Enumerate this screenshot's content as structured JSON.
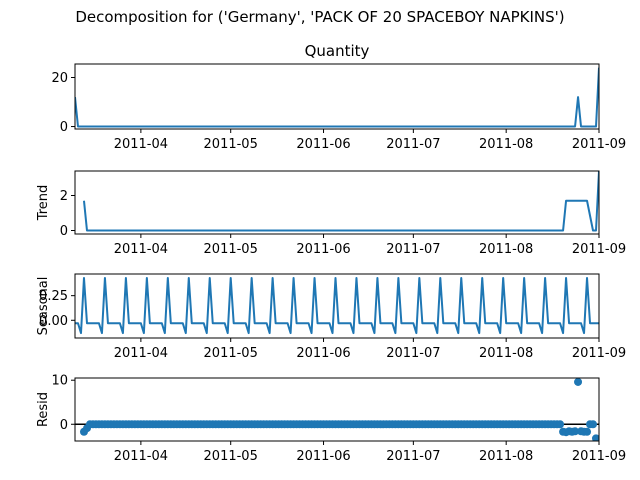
{
  "figure": {
    "suptitle": "Decomposition for ('Germany', 'PACK OF 20 SPACEBOY NAPKINS')"
  },
  "chart_data": [
    {
      "type": "line",
      "name": "observed",
      "title": "Quantity",
      "ylabel": "",
      "x_range": [
        "2011-03-10",
        "2011-09-01"
      ],
      "ylim": [
        -1,
        25.5
      ],
      "yticks": [
        0,
        20
      ],
      "xticks": [
        "2011-04",
        "2011-05",
        "2011-06",
        "2011-07",
        "2011-08",
        "2011-09"
      ],
      "x": [
        "2011-03-10",
        "2011-03-11",
        "2011-08-24",
        "2011-08-25",
        "2011-08-26",
        "2011-08-31",
        "2011-09-01"
      ],
      "y": [
        12,
        0,
        0,
        12,
        0,
        0,
        24
      ]
    },
    {
      "type": "line",
      "name": "trend",
      "title": "",
      "ylabel": "Trend",
      "x_range": [
        "2011-03-10",
        "2011-09-01"
      ],
      "ylim": [
        -0.2,
        3.4
      ],
      "yticks": [
        0,
        2
      ],
      "xticks": [
        "2011-04",
        "2011-05",
        "2011-06",
        "2011-07",
        "2011-08",
        "2011-09"
      ],
      "x": [
        "2011-03-13",
        "2011-03-14",
        "2011-08-20",
        "2011-08-21",
        "2011-08-27",
        "2011-08-28",
        "2011-08-30",
        "2011-08-31",
        "2011-09-01"
      ],
      "y": [
        1.7,
        0,
        0,
        1.7,
        1.7,
        1.7,
        0,
        0,
        3.4
      ]
    },
    {
      "type": "line",
      "name": "seasonal",
      "title": "",
      "ylabel": "Seasonal",
      "x_range": [
        "2011-03-10",
        "2011-09-01"
      ],
      "ylim": [
        -0.18,
        0.47
      ],
      "yticks": [
        0.0,
        0.25
      ],
      "ytick_labels": [
        "0.00",
        "0.25"
      ],
      "xticks": [
        "2011-04",
        "2011-05",
        "2011-06",
        "2011-07",
        "2011-08",
        "2011-09"
      ],
      "period": 7,
      "pattern_start": "2011-03-10",
      "pattern": [
        -0.03,
        -0.03,
        -0.13,
        0.43,
        -0.03,
        -0.03,
        -0.03
      ]
    },
    {
      "type": "scatter",
      "name": "resid",
      "title": "",
      "ylabel": "Resid",
      "x_range": [
        "2011-03-10",
        "2011-09-01"
      ],
      "ylim": [
        -3.8,
        10.5
      ],
      "yticks": [
        0,
        10
      ],
      "xticks": [
        "2011-04",
        "2011-05",
        "2011-06",
        "2011-07",
        "2011-08",
        "2011-09"
      ],
      "zero_line": true,
      "x_start": "2011-03-13",
      "x_end": "2011-08-31",
      "y_default": 0.0,
      "overrides": {
        "2011-03-13": -1.7,
        "2011-03-14": -0.9,
        "2011-08-20": -1.7,
        "2011-08-21": -1.8,
        "2011-08-22": -1.6,
        "2011-08-23": -1.7,
        "2011-08-24": -1.6,
        "2011-08-25": 9.6,
        "2011-08-26": -1.6,
        "2011-08-27": -1.7,
        "2011-08-28": -1.7,
        "2011-08-29": 0.0,
        "2011-08-30": 0.0,
        "2011-08-31": -3.2
      }
    }
  ]
}
